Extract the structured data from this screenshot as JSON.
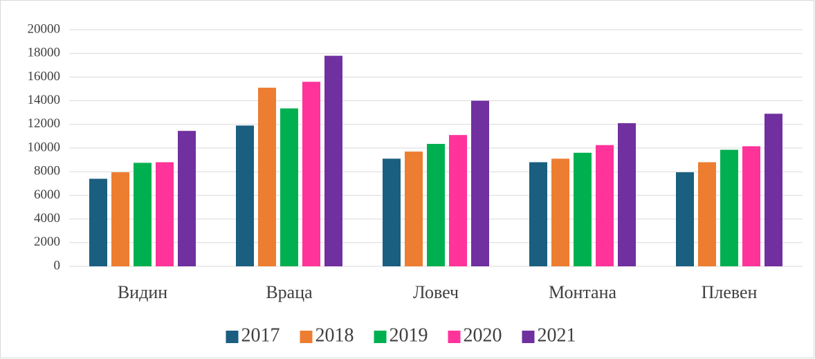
{
  "chart_data": {
    "type": "bar",
    "categories": [
      "Видин",
      "Враца",
      "Ловеч",
      "Монтана",
      "Плевен"
    ],
    "series": [
      {
        "name": "2017",
        "color": "#1a5e80",
        "values": [
          7400,
          11900,
          9100,
          8800,
          7950
        ]
      },
      {
        "name": "2018",
        "color": "#ed7d31",
        "values": [
          7950,
          15100,
          9700,
          9100,
          8800
        ]
      },
      {
        "name": "2019",
        "color": "#00b050",
        "values": [
          8750,
          13350,
          10350,
          9600,
          9850
        ]
      },
      {
        "name": "2020",
        "color": "#ff3399",
        "values": [
          8800,
          15600,
          11100,
          10250,
          10150
        ]
      },
      {
        "name": "2021",
        "color": "#7030a0",
        "values": [
          11450,
          17800,
          14000,
          12100,
          12900
        ]
      }
    ],
    "ylim": [
      0,
      20000
    ],
    "yticks": [
      0,
      2000,
      4000,
      6000,
      8000,
      10000,
      12000,
      14000,
      16000,
      18000,
      20000
    ],
    "grid": true,
    "legend": "bottom"
  }
}
